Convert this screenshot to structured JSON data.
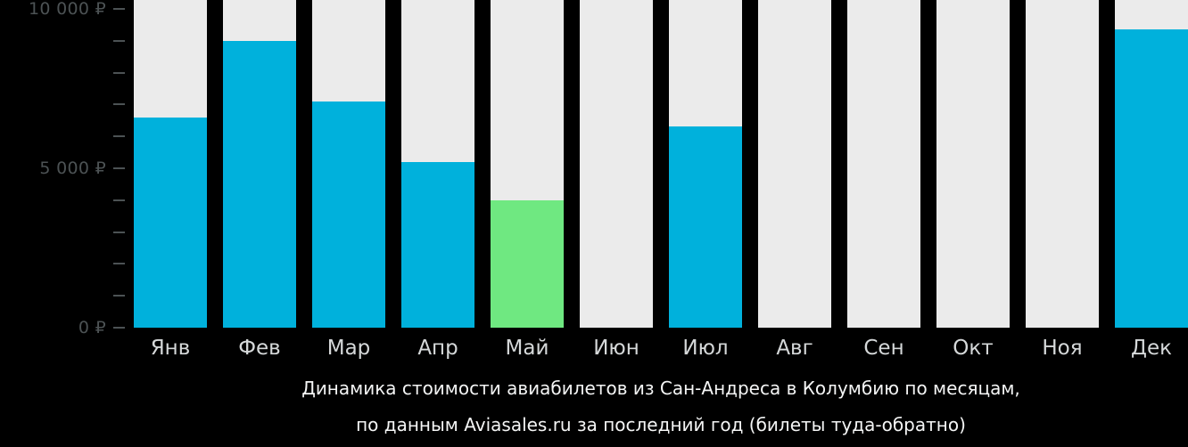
{
  "chart_data": {
    "type": "bar",
    "title": "Динамика стоимости авиабилетов из Сан-Андреса в Колумбию по месяцам,",
    "subtitle": "по данным Aviasales.ru за последний год (билеты туда-обратно)",
    "categories": [
      "Янв",
      "Фев",
      "Мар",
      "Апр",
      "Май",
      "Июн",
      "Июл",
      "Авг",
      "Сен",
      "Окт",
      "Ноя",
      "Дек"
    ],
    "values": [
      6600,
      9000,
      7100,
      5200,
      4000,
      null,
      6300,
      null,
      null,
      null,
      null,
      9350
    ],
    "highlight_index": 4,
    "ylim": [
      0,
      10000
    ],
    "ytick_step": 1000,
    "ytick_labels": {
      "0": "0 ₽",
      "5000": "5 000 ₽",
      "10000": "10 000 ₽"
    },
    "grid": "off",
    "legend": "none",
    "colors": {
      "bar": "#00b1dc",
      "highlight": "#6fe881",
      "track": "#ebebeb",
      "axis_text": "#4c5254",
      "month_text": "#d5d8d9",
      "caption_text": "#f4f5f5",
      "background": "#000000"
    }
  }
}
